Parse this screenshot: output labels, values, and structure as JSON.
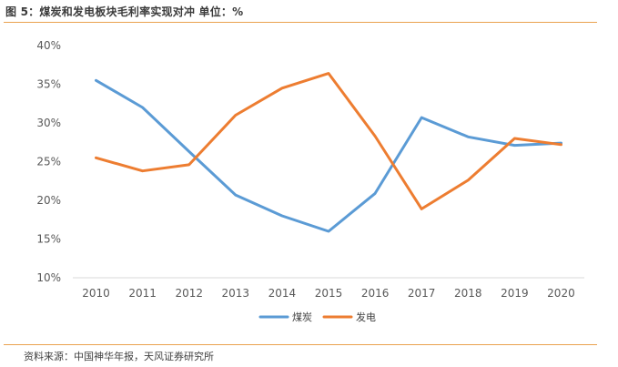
{
  "figure": {
    "title": "图 5：煤炭和发电板块毛利率实现对冲  单位：%",
    "source": "资料来源：中国神华年报，天风证券研究所"
  },
  "colors": {
    "rule": "#e9a24f",
    "axis": "#d9d9d9"
  },
  "chart_data": {
    "type": "line",
    "x": [
      "2010",
      "2011",
      "2012",
      "2013",
      "2014",
      "2015",
      "2016",
      "2017",
      "2018",
      "2019",
      "2020"
    ],
    "series": [
      {
        "name": "煤炭",
        "color": "#5b9bd5",
        "values": [
          35.5,
          32.0,
          26.3,
          20.7,
          18.0,
          16.0,
          20.9,
          30.7,
          28.2,
          27.1,
          27.4
        ]
      },
      {
        "name": "发电",
        "color": "#ed7d31",
        "values": [
          25.5,
          23.8,
          24.6,
          31.0,
          34.5,
          36.4,
          28.3,
          18.9,
          22.6,
          28.0,
          27.2
        ]
      }
    ],
    "yticks": [
      "40%",
      "35%",
      "30%",
      "25%",
      "20%",
      "15%",
      "10%"
    ],
    "ylim": [
      10,
      40
    ],
    "grid": false,
    "legend": "bottom"
  }
}
